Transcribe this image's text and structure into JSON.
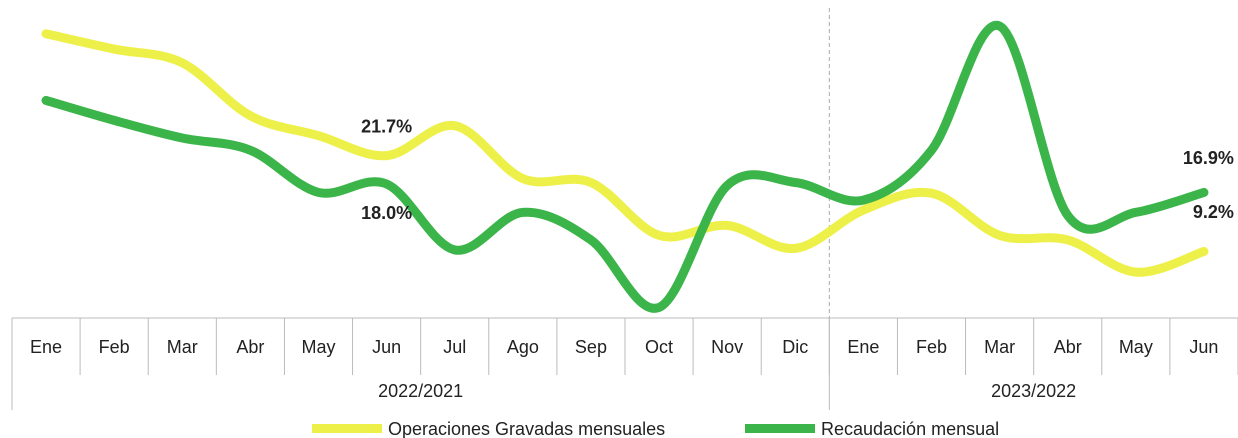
{
  "chart_data": {
    "type": "line",
    "categories": [
      "Ene",
      "Feb",
      "Mar",
      "Abr",
      "May",
      "Jun",
      "Jul",
      "Ago",
      "Sep",
      "Oct",
      "Nov",
      "Dic",
      "Ene",
      "Feb",
      "Mar",
      "Abr",
      "May",
      "Jun"
    ],
    "groups": [
      {
        "label": "2022/2021",
        "span": 12
      },
      {
        "label": "2023/2022",
        "span": 6
      }
    ],
    "series": [
      {
        "name": "Operaciones Gravadas mensuales",
        "color": "#eef04a",
        "values": [
          37.6,
          35.6,
          33.8,
          26.9,
          24.3,
          21.7,
          25.6,
          18.7,
          18.2,
          11.3,
          12.6,
          9.6,
          14.6,
          16.8,
          11.3,
          10.7,
          6.5,
          9.2
        ],
        "value_labels": [
          null,
          null,
          null,
          null,
          null,
          "21.7%",
          null,
          null,
          null,
          null,
          null,
          null,
          null,
          null,
          null,
          null,
          null,
          "9.2%"
        ]
      },
      {
        "name": "Recaudación mensual",
        "color": "#3bb54a",
        "values": [
          28.9,
          26.3,
          24.0,
          22.4,
          16.9,
          18.0,
          9.4,
          14.3,
          10.7,
          1.9,
          17.8,
          18.2,
          15.9,
          22.4,
          38.6,
          13.9,
          14.3,
          16.9
        ],
        "value_labels": [
          null,
          null,
          null,
          null,
          null,
          "18.0%",
          null,
          null,
          null,
          null,
          null,
          null,
          null,
          null,
          null,
          null,
          null,
          "16.9%"
        ]
      }
    ],
    "ylim": [
      0,
      42
    ],
    "legend": "bottom"
  }
}
